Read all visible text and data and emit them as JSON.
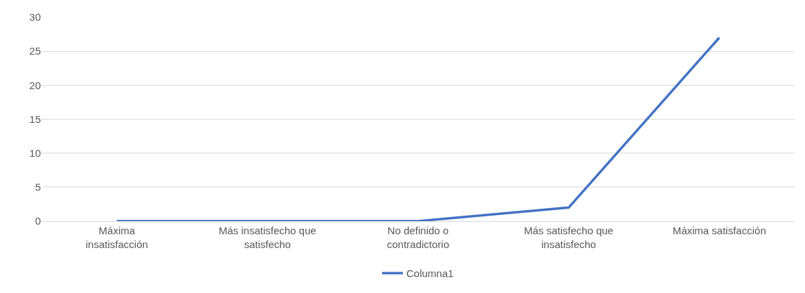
{
  "chart_data": {
    "type": "line",
    "categories": [
      "Máxima insatisfacción",
      "Más insatisfecho que satisfecho",
      "No definido o contradictorio",
      "Más satisfecho que insatisfecho",
      "Máxima satisfacción"
    ],
    "series": [
      {
        "name": "Columna1",
        "color": "#4472c4",
        "values": [
          0,
          0,
          0,
          2,
          27
        ]
      }
    ],
    "ylim": [
      0,
      30
    ],
    "yticks": [
      0,
      5,
      10,
      15,
      20,
      25,
      30
    ],
    "grid": "y",
    "legend": "bottom",
    "marker": "none",
    "line_style": "solid"
  }
}
